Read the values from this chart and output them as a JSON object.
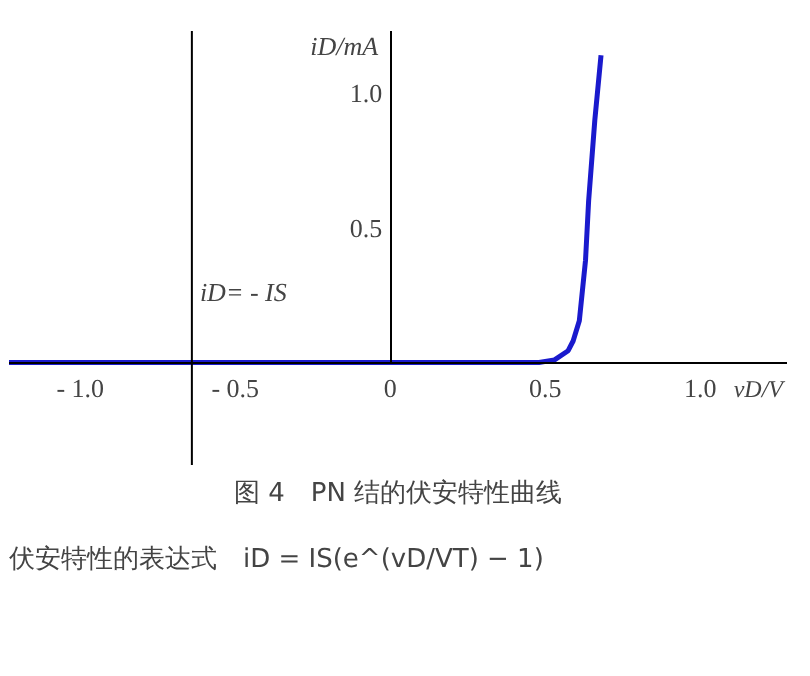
{
  "chart_data": {
    "type": "line",
    "title": "图 4　PN 结的伏安特性曲线",
    "xlabel": "vD/V",
    "ylabel": "iD/mA",
    "series": [
      {
        "color": "#1a1acd",
        "x": [
          -1.23,
          0.48,
          0.53,
          0.574,
          0.59,
          0.61,
          0.63,
          0.64,
          0.66,
          0.68
        ],
        "values": [
          0,
          0,
          0.01,
          0.044,
          0.08,
          0.155,
          0.38,
          0.6,
          0.9,
          1.14
        ]
      }
    ],
    "xlim": [
      -1.23,
      1.28
    ],
    "ylim": [
      -0.38,
      1.23
    ],
    "xticks": [
      {
        "value": -1.0,
        "label": "- 1.0"
      },
      {
        "value": -0.5,
        "label": "- 0.5"
      },
      0,
      {
        "value": 0.5,
        "label": "0.5"
      },
      {
        "value": 1.0,
        "label": "1.0"
      }
    ],
    "yticks": [
      {
        "value": 0.5,
        "label": "0.5"
      },
      {
        "value": 1.0,
        "label": "1.0"
      }
    ],
    "ref_lines": [
      {
        "axis": "x",
        "value": -0.64,
        "label": "iD= - IS",
        "color": "#000000"
      }
    ],
    "annotations": [
      "伏安特性的表达式　iD = IS(e^(vD/VT) − 1)"
    ],
    "marker": "none",
    "line_style": "solid"
  }
}
